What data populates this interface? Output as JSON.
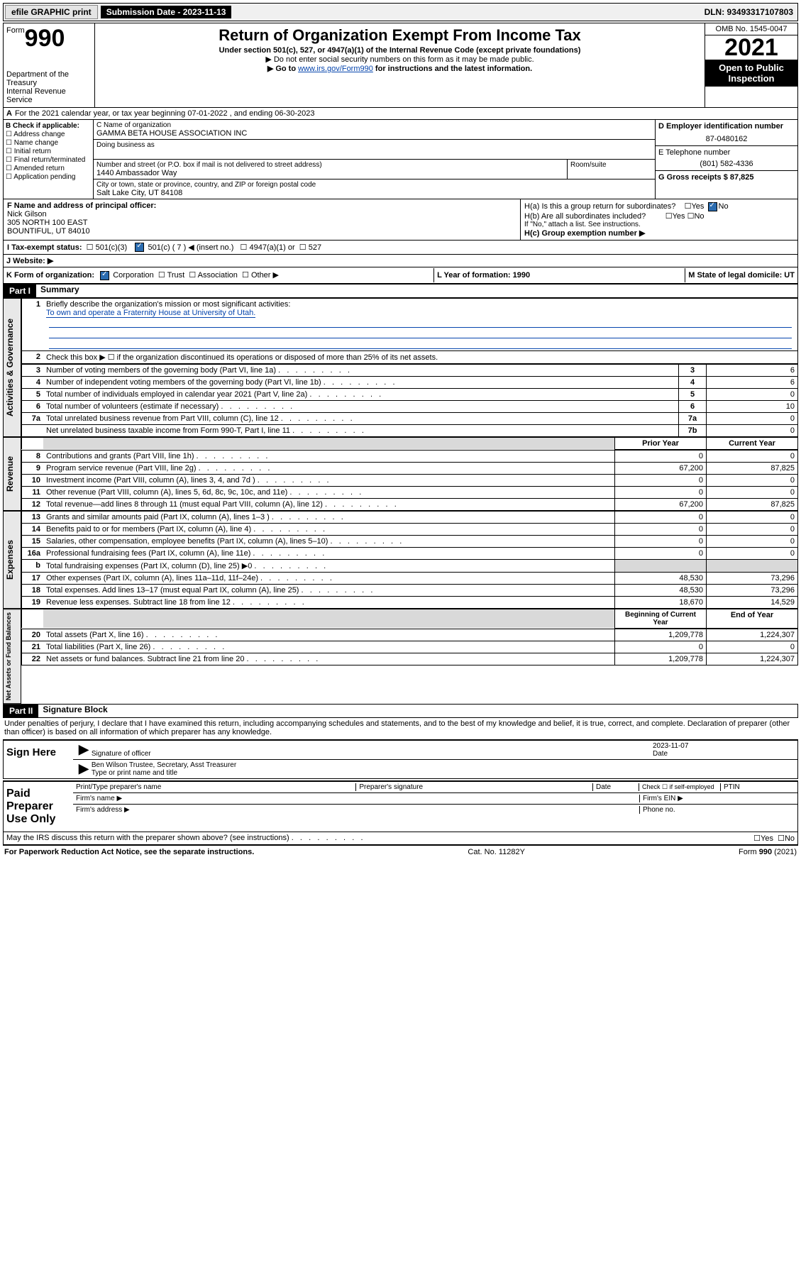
{
  "topbar": {
    "efile": "efile GRAPHIC print",
    "submission": "Submission Date - 2023-11-13",
    "dln": "DLN: 93493317107803"
  },
  "header": {
    "form_label": "Form",
    "form_no": "990",
    "dept": "Department of the Treasury",
    "irs": "Internal Revenue Service",
    "title": "Return of Organization Exempt From Income Tax",
    "sub": "Under section 501(c), 527, or 4947(a)(1) of the Internal Revenue Code (except private foundations)",
    "note1": "▶ Do not enter social security numbers on this form as it may be made public.",
    "note2_pre": "▶ Go to ",
    "note2_link": "www.irs.gov/Form990",
    "note2_post": " for instructions and the latest information.",
    "omb": "OMB No. 1545-0047",
    "year": "2021",
    "inspect": "Open to Public Inspection"
  },
  "secA": {
    "a_line": "For the 2021 calendar year, or tax year beginning 07-01-2022   , and ending 06-30-2023",
    "b_label": "B Check if applicable:",
    "b_opts": [
      "Address change",
      "Name change",
      "Initial return",
      "Final return/terminated",
      "Amended return",
      "Application pending"
    ],
    "c_label": "C Name of organization",
    "c_name": "GAMMA BETA HOUSE ASSOCIATION INC",
    "dba": "Doing business as",
    "addr_label": "Number and street (or P.O. box if mail is not delivered to street address)",
    "room": "Room/suite",
    "addr": "1440 Ambassador Way",
    "city_label": "City or town, state or province, country, and ZIP or foreign postal code",
    "city": "Salt Lake City, UT  84108",
    "d_label": "D Employer identification number",
    "d_val": "87-0480162",
    "e_label": "E Telephone number",
    "e_val": "(801) 582-4336",
    "g_label": "G Gross receipts $ 87,825",
    "f_label": "F  Name and address of principal officer:",
    "f_name": "Nick Gilson",
    "f_addr1": "305 NORTH 100 EAST",
    "f_addr2": "BOUNTIFUL, UT  84010",
    "ha": "H(a)  Is this a group return for subordinates?",
    "hb": "H(b)  Are all subordinates included?",
    "hb_note": "If \"No,\" attach a list. See instructions.",
    "hc": "H(c)  Group exemption number ▶",
    "yes": "Yes",
    "no": "No",
    "i_label": "I   Tax-exempt status:",
    "i_501c3": "501(c)(3)",
    "i_501c": "501(c) ( 7 ) ◀ (insert no.)",
    "i_4947": "4947(a)(1) or",
    "i_527": "527",
    "j_label": "J   Website: ▶",
    "k_label": "K Form of organization:",
    "k_corp": "Corporation",
    "k_trust": "Trust",
    "k_assoc": "Association",
    "k_other": "Other ▶",
    "l_label": "L Year of formation: 1990",
    "m_label": "M State of legal domicile: UT"
  },
  "part1": {
    "header": "Part I",
    "title": "Summary",
    "vlabel1": "Activities & Governance",
    "vlabel2": "Revenue",
    "vlabel3": "Expenses",
    "vlabel4": "Net Assets or Fund Balances",
    "line1": "Briefly describe the organization's mission or most significant activities:",
    "mission": "To own and operate a Fraternity House at University of Utah.",
    "line2": "Check this box ▶ ☐  if the organization discontinued its operations or disposed of more than 25% of its net assets.",
    "rows_gov": [
      {
        "n": "3",
        "d": "Number of voting members of the governing body (Part VI, line 1a)",
        "c": "3",
        "v": "6"
      },
      {
        "n": "4",
        "d": "Number of independent voting members of the governing body (Part VI, line 1b)",
        "c": "4",
        "v": "6"
      },
      {
        "n": "5",
        "d": "Total number of individuals employed in calendar year 2021 (Part V, line 2a)",
        "c": "5",
        "v": "0"
      },
      {
        "n": "6",
        "d": "Total number of volunteers (estimate if necessary)",
        "c": "6",
        "v": "10"
      },
      {
        "n": "7a",
        "d": "Total unrelated business revenue from Part VIII, column (C), line 12",
        "c": "7a",
        "v": "0"
      },
      {
        "n": "",
        "d": "Net unrelated business taxable income from Form 990-T, Part I, line 11",
        "c": "7b",
        "v": "0"
      }
    ],
    "col_prior": "Prior Year",
    "col_current": "Current Year",
    "rows_rev": [
      {
        "n": "8",
        "d": "Contributions and grants (Part VIII, line 1h)",
        "p": "0",
        "c": "0"
      },
      {
        "n": "9",
        "d": "Program service revenue (Part VIII, line 2g)",
        "p": "67,200",
        "c": "87,825"
      },
      {
        "n": "10",
        "d": "Investment income (Part VIII, column (A), lines 3, 4, and 7d )",
        "p": "0",
        "c": "0"
      },
      {
        "n": "11",
        "d": "Other revenue (Part VIII, column (A), lines 5, 6d, 8c, 9c, 10c, and 11e)",
        "p": "0",
        "c": "0"
      },
      {
        "n": "12",
        "d": "Total revenue—add lines 8 through 11 (must equal Part VIII, column (A), line 12)",
        "p": "67,200",
        "c": "87,825"
      }
    ],
    "rows_exp": [
      {
        "n": "13",
        "d": "Grants and similar amounts paid (Part IX, column (A), lines 1–3 )",
        "p": "0",
        "c": "0"
      },
      {
        "n": "14",
        "d": "Benefits paid to or for members (Part IX, column (A), line 4)",
        "p": "0",
        "c": "0"
      },
      {
        "n": "15",
        "d": "Salaries, other compensation, employee benefits (Part IX, column (A), lines 5–10)",
        "p": "0",
        "c": "0"
      },
      {
        "n": "16a",
        "d": "Professional fundraising fees (Part IX, column (A), line 11e)",
        "p": "0",
        "c": "0"
      },
      {
        "n": "b",
        "d": "Total fundraising expenses (Part IX, column (D), line 25) ▶0",
        "p": "",
        "c": "",
        "gray": true
      },
      {
        "n": "17",
        "d": "Other expenses (Part IX, column (A), lines 11a–11d, 11f–24e)",
        "p": "48,530",
        "c": "73,296"
      },
      {
        "n": "18",
        "d": "Total expenses. Add lines 13–17 (must equal Part IX, column (A), line 25)",
        "p": "48,530",
        "c": "73,296"
      },
      {
        "n": "19",
        "d": "Revenue less expenses. Subtract line 18 from line 12",
        "p": "18,670",
        "c": "14,529"
      }
    ],
    "col_begin": "Beginning of Current Year",
    "col_end": "End of Year",
    "rows_na": [
      {
        "n": "20",
        "d": "Total assets (Part X, line 16)",
        "p": "1,209,778",
        "c": "1,224,307"
      },
      {
        "n": "21",
        "d": "Total liabilities (Part X, line 26)",
        "p": "0",
        "c": "0"
      },
      {
        "n": "22",
        "d": "Net assets or fund balances. Subtract line 21 from line 20",
        "p": "1,209,778",
        "c": "1,224,307"
      }
    ]
  },
  "part2": {
    "header": "Part II",
    "title": "Signature Block",
    "decl": "Under penalties of perjury, I declare that I have examined this return, including accompanying schedules and statements, and to the best of my knowledge and belief, it is true, correct, and complete. Declaration of preparer (other than officer) is based on all information of which preparer has any knowledge.",
    "sign_here": "Sign Here",
    "sig_officer": "Signature of officer",
    "date": "Date",
    "sig_date": "2023-11-07",
    "name_title": "Ben Wilson  Trustee, Secretary, Asst Treasurer",
    "name_label": "Type or print name and title",
    "paid": "Paid Preparer Use Only",
    "p_name": "Print/Type preparer's name",
    "p_sig": "Preparer's signature",
    "p_date": "Date",
    "p_check": "Check ☐ if self-employed",
    "p_ptin": "PTIN",
    "firm_name": "Firm's name   ▶",
    "firm_ein": "Firm's EIN ▶",
    "firm_addr": "Firm's address ▶",
    "phone": "Phone no.",
    "discuss": "May the IRS discuss this return with the preparer shown above? (see instructions)"
  },
  "footer": {
    "pra": "For Paperwork Reduction Act Notice, see the separate instructions.",
    "cat": "Cat. No. 11282Y",
    "form": "Form 990 (2021)"
  }
}
